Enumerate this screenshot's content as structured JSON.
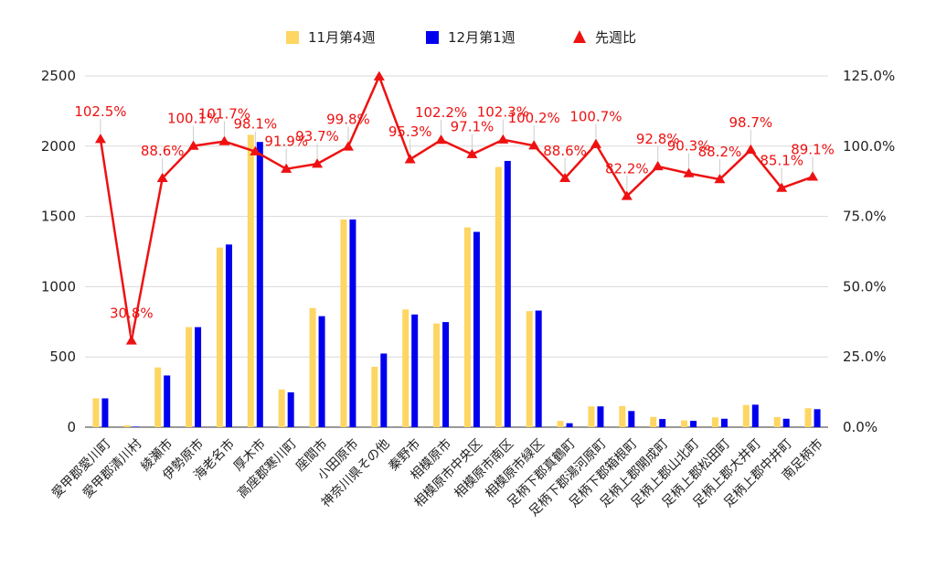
{
  "chart_data": {
    "type": "bar",
    "categories": [
      "愛甲郡愛川町",
      "愛甲郡清川村",
      "綾瀬市",
      "伊勢原市",
      "海老名市",
      "厚木市",
      "高座郡寒川町",
      "座間市",
      "小田原市",
      "神奈川県その他",
      "秦野市",
      "相模原市",
      "相模原市中央区",
      "相模原市南区",
      "相模原市緑区",
      "足柄下郡真鶴町",
      "足柄下郡湯河原町",
      "足柄下郡箱根町",
      "足柄上郡開成町",
      "足柄上郡山北町",
      "足柄上郡松田町",
      "足柄上郡大井町",
      "足柄上郡中井町",
      "南足柄市"
    ],
    "series": [
      {
        "name": "11月第4週",
        "type": "bar",
        "axis": "left",
        "color": "#fdd663",
        "values": [
          205,
          13,
          425,
          712,
          1278,
          2081,
          268,
          848,
          1478,
          430,
          838,
          738,
          1422,
          1852,
          826,
          45,
          148,
          150,
          73,
          48,
          70,
          158,
          72,
          135
        ]
      },
      {
        "name": "12月第1週",
        "type": "bar",
        "axis": "left",
        "color": "#0000ee",
        "values": [
          205,
          4,
          368,
          712,
          1300,
          2030,
          248,
          790,
          1478,
          524,
          802,
          748,
          1390,
          1895,
          830,
          28,
          148,
          115,
          58,
          45,
          60,
          160,
          60,
          128
        ]
      },
      {
        "name": "先週比",
        "type": "line",
        "axis": "right",
        "color": "#ee1111",
        "marker": "triangle",
        "values": [
          102.5,
          30.8,
          88.6,
          100.1,
          101.7,
          98.1,
          91.9,
          93.7,
          99.8,
          124.8,
          95.3,
          102.2,
          97.1,
          102.3,
          100.2,
          88.6,
          100.7,
          82.2,
          92.8,
          90.3,
          88.2,
          98.7,
          85.1,
          89.1
        ],
        "labels": [
          "102.5%",
          "30.8%",
          "88.6%",
          "100.1%",
          "101.7%",
          "98.1%",
          "91.9%",
          "93.7%",
          "99.8%",
          "",
          "95.3%",
          "102.2%",
          "97.1%",
          "102.3%",
          "100.2%",
          "88.6%",
          "100.7%",
          "82.2%",
          "92.8%",
          "90.3%",
          "88.2%",
          "98.7%",
          "85.1%",
          "89.1%"
        ]
      }
    ],
    "y_left": {
      "min": 0,
      "max": 2500,
      "ticks": [
        "0",
        "500",
        "1000",
        "1500",
        "2000",
        "2500"
      ]
    },
    "y_right": {
      "min": 0,
      "max": 125,
      "ticks": [
        "0.0%",
        "25.0%",
        "50.0%",
        "75.0%",
        "100.0%",
        "125.0%"
      ]
    },
    "legend": {
      "position": "top-center",
      "entries": [
        "11月第4週",
        "12月第1週",
        "先週比"
      ]
    },
    "grid": true
  }
}
